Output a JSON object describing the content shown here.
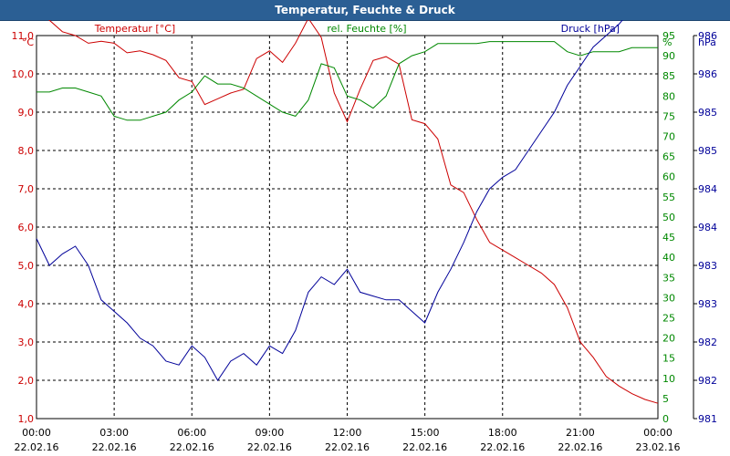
{
  "window": {
    "title": "Temperatur, Feuchte & Druck"
  },
  "colors": {
    "titlebar": "#2b5f94",
    "temperature": "#cc0000",
    "humidity": "#008800",
    "pressure": "#000099",
    "grid": "#000000"
  },
  "chart_data": {
    "type": "line",
    "title": "Temperatur, Feuchte & Druck",
    "grid": true,
    "x": {
      "range": [
        "22.02.16 00:00",
        "23.02.16 00:00"
      ],
      "tick_times": [
        "00:00",
        "03:00",
        "06:00",
        "09:00",
        "12:00",
        "15:00",
        "18:00",
        "21:00",
        "00:00"
      ],
      "tick_dates": [
        "22.02.16",
        "22.02.16",
        "22.02.16",
        "22.02.16",
        "22.02.16",
        "22.02.16",
        "22.02.16",
        "22.02.16",
        "23.02.16"
      ]
    },
    "axes": {
      "temperature": {
        "unit": "°C",
        "min": 1.0,
        "max": 11.0,
        "ticks": [
          "1,0",
          "2,0",
          "3,0",
          "4,0",
          "5,0",
          "6,0",
          "7,0",
          "8,0",
          "9,0",
          "10,0",
          "11,0"
        ]
      },
      "humidity": {
        "unit": "%",
        "min": 0,
        "max": 95,
        "ticks": [
          "0",
          "5",
          "10",
          "15",
          "20",
          "25",
          "30",
          "35",
          "40",
          "45",
          "50",
          "55",
          "60",
          "65",
          "70",
          "75",
          "80",
          "85",
          "90",
          "95"
        ]
      },
      "pressure": {
        "unit": "hPa",
        "min": 981.0,
        "max": 986.0,
        "ticks": [
          "981",
          "982",
          "982",
          "983",
          "983",
          "984",
          "984",
          "985",
          "985",
          "986",
          "986"
        ]
      }
    },
    "series": [
      {
        "name": "Temperatur [°C]",
        "axis": "temperature",
        "hours": [
          0,
          0.5,
          1,
          1.5,
          2,
          2.5,
          3,
          3.5,
          4,
          4.5,
          5,
          5.5,
          6,
          6.5,
          7,
          7.5,
          8,
          8.5,
          9,
          9.5,
          10,
          10.5,
          11,
          11.5,
          12,
          12.5,
          13,
          13.5,
          14,
          14.5,
          15,
          15.5,
          16,
          16.5,
          17,
          17.5,
          18,
          18.5,
          19,
          19.5,
          20,
          20.5,
          21,
          21.5,
          22,
          22.5,
          23,
          23.5,
          24
        ],
        "values": [
          11.6,
          11.4,
          11.1,
          11.0,
          10.8,
          10.85,
          10.8,
          10.55,
          10.6,
          10.5,
          10.35,
          9.9,
          9.8,
          9.2,
          9.35,
          9.5,
          9.6,
          10.4,
          10.6,
          10.3,
          10.8,
          11.45,
          10.95,
          9.5,
          8.75,
          9.6,
          10.35,
          10.45,
          10.25,
          8.8,
          8.7,
          8.3,
          7.1,
          6.9,
          6.2,
          5.6,
          5.4,
          5.2,
          5.0,
          4.8,
          4.5,
          3.9,
          3.0,
          2.6,
          2.1,
          1.85,
          1.65,
          1.5,
          1.4
        ]
      },
      {
        "name": "rel. Feuchte [%]",
        "axis": "humidity",
        "hours": [
          0,
          0.5,
          1,
          1.5,
          2,
          2.5,
          3,
          3.5,
          4,
          4.5,
          5,
          5.5,
          6,
          6.5,
          7,
          7.5,
          8,
          8.5,
          9,
          9.5,
          10,
          10.5,
          11,
          11.5,
          12,
          12.5,
          13,
          13.5,
          14,
          14.5,
          15,
          15.5,
          16,
          16.5,
          17,
          17.5,
          18,
          18.5,
          19,
          19.5,
          20,
          20.5,
          21,
          21.5,
          22,
          22.5,
          23,
          23.5,
          24
        ],
        "values": [
          81,
          81,
          82,
          82,
          81,
          80,
          75,
          74,
          74,
          75,
          76,
          79,
          81,
          85,
          83,
          83,
          82,
          80,
          78,
          76,
          75,
          79,
          88,
          87,
          80,
          79,
          77,
          80,
          88,
          90,
          91,
          93,
          93,
          93,
          93,
          93.5,
          93.5,
          93.5,
          93.5,
          93.5,
          93.5,
          91,
          90,
          91,
          91,
          91,
          92,
          92,
          92
        ]
      },
      {
        "name": "Druck [hPa]",
        "axis": "pressure",
        "hours": [
          0,
          0.5,
          1,
          1.5,
          2,
          2.5,
          3,
          3.5,
          4,
          4.5,
          5,
          5.5,
          6,
          6.5,
          7,
          7.5,
          8,
          8.5,
          9,
          9.5,
          10,
          10.5,
          11,
          11.5,
          12,
          12.5,
          13,
          13.5,
          14,
          14.5,
          15,
          15.5,
          16,
          16.5,
          17,
          17.5,
          18,
          18.5,
          19,
          19.5,
          20,
          20.5,
          21,
          21.5,
          22,
          22.5,
          23,
          23.5,
          24
        ],
        "values": [
          983.35,
          983.0,
          983.15,
          983.25,
          983.0,
          982.55,
          982.4,
          982.25,
          982.05,
          981.95,
          981.75,
          981.7,
          981.95,
          981.8,
          981.5,
          981.75,
          981.85,
          981.7,
          981.95,
          981.85,
          982.15,
          982.65,
          982.85,
          982.75,
          982.95,
          982.65,
          982.6,
          982.55,
          982.55,
          982.4,
          982.25,
          982.65,
          982.95,
          983.3,
          983.7,
          984.0,
          984.15,
          984.25,
          984.5,
          984.75,
          985.0,
          985.35,
          985.6,
          985.85,
          986.0,
          986.15,
          986.35,
          986.55,
          986.55
        ]
      }
    ]
  }
}
